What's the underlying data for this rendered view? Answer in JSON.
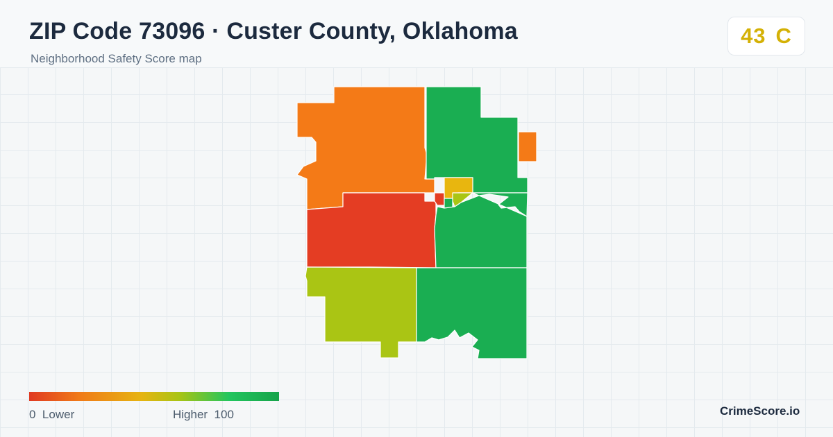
{
  "header": {
    "title": "ZIP Code 73096 · Custer County, Oklahoma",
    "subtitle": "Neighborhood Safety Score map"
  },
  "score": {
    "value": "43",
    "grade": "C",
    "color": "#d4b106"
  },
  "legend": {
    "min_value": "0",
    "min_label": "Lower",
    "max_label": "Higher",
    "max_value": "100",
    "colors": [
      "#e03a22",
      "#f07a18",
      "#e6b411",
      "#a9c414",
      "#22c55e",
      "#16a34a"
    ]
  },
  "brand": "CrimeScore.io",
  "map_palette": {
    "red": "#e43d23",
    "orange": "#f47a17",
    "amber": "#e8b60f",
    "yellow_green": "#aac514",
    "green": "#1aae52"
  }
}
